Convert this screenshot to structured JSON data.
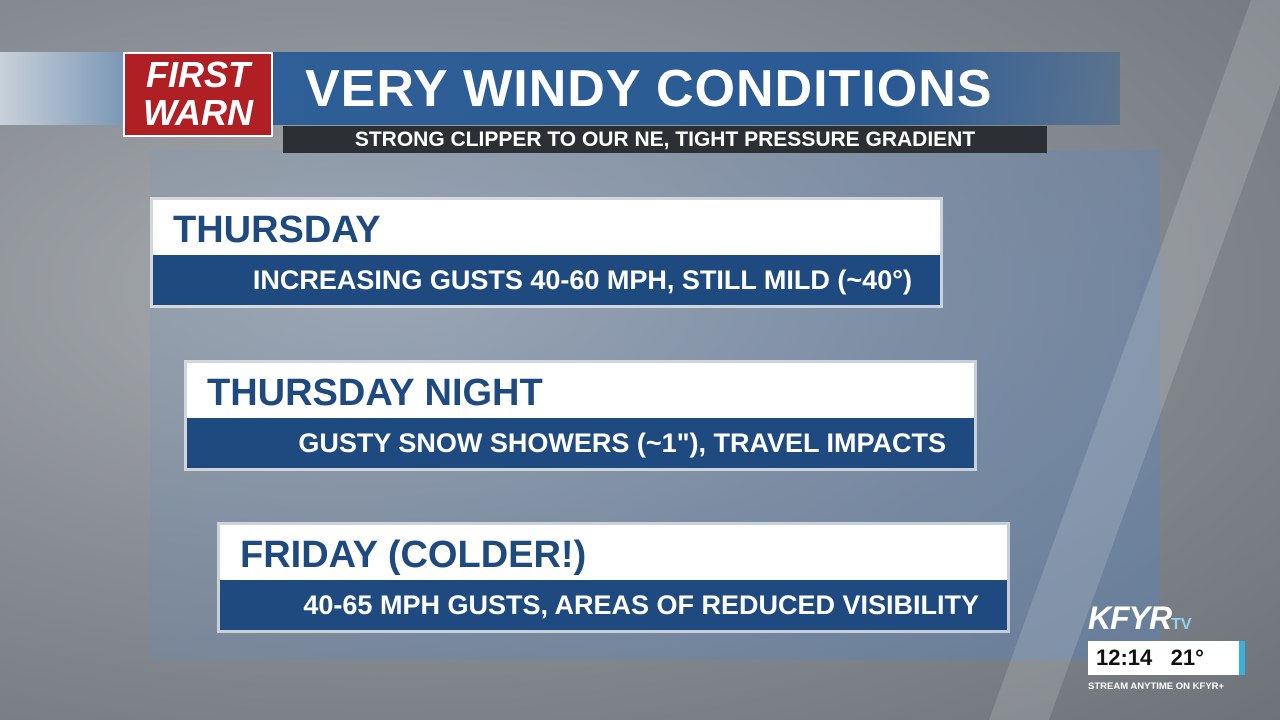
{
  "header": {
    "logo_line1": "FIRST",
    "logo_line2": "WARN",
    "title": "VERY WINDY CONDITIONS",
    "subtitle": "STRONG CLIPPER TO OUR NE, TIGHT PRESSURE GRADIENT"
  },
  "panels": [
    {
      "heading": "THURSDAY",
      "detail": "INCREASING GUSTS 40-60 MPH, STILL MILD (~40°)"
    },
    {
      "heading": "THURSDAY NIGHT",
      "detail": "GUSTY SNOW SHOWERS (~1\"), TRAVEL IMPACTS"
    },
    {
      "heading": "FRIDAY (COLDER!)",
      "detail": "40-65 MPH GUSTS, AREAS OF REDUCED VISIBILITY"
    }
  ],
  "bug": {
    "station": "KFYR",
    "tv": "TV",
    "time": "12:14",
    "temp": "21°",
    "tagline": "STREAM ANYTIME ON KFYR+"
  }
}
